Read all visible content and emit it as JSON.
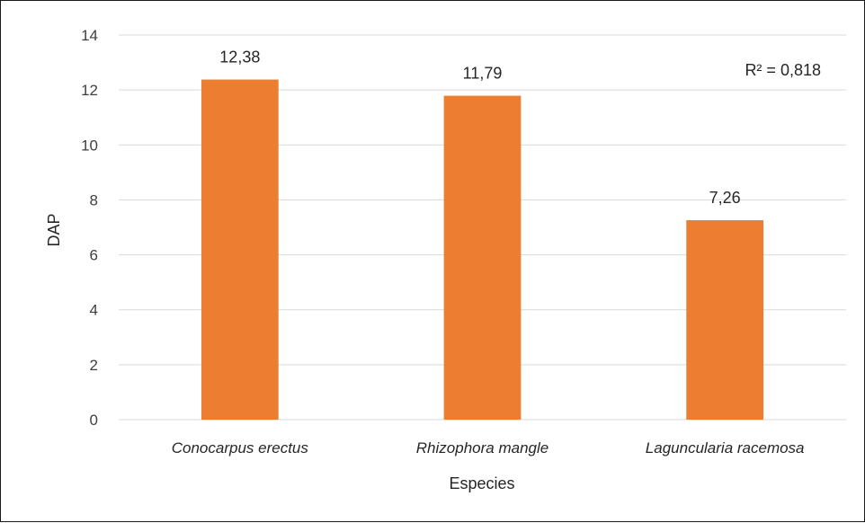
{
  "chart_data": {
    "type": "bar",
    "categories": [
      "Conocarpus erectus",
      "Rhizophora mangle",
      "Laguncularia racemosa"
    ],
    "values": [
      12.38,
      11.79,
      7.26
    ],
    "data_labels": [
      "12,38",
      "11,79",
      "7,26"
    ],
    "title": "",
    "xlabel": "Especies",
    "ylabel": "DAP",
    "ylim": [
      0,
      14
    ],
    "yticks": [
      0,
      2,
      4,
      6,
      8,
      10,
      12,
      14
    ],
    "grid": true,
    "legend": "none",
    "annotation": "R² = 0,818",
    "colors": {
      "bar": "#ED7D31",
      "grid": "#d9d9d9"
    }
  }
}
